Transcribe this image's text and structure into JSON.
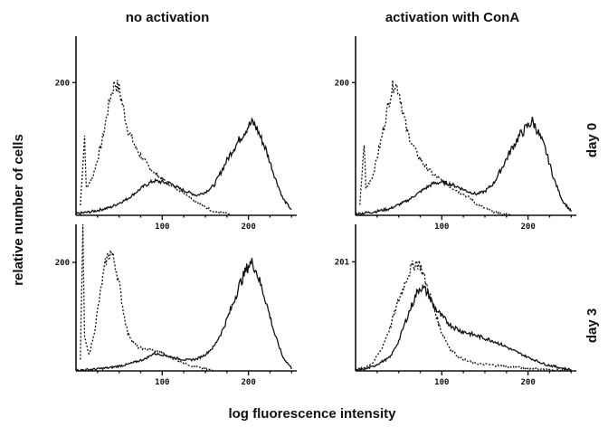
{
  "figure": {
    "column_titles": [
      "no activation",
      "activation  with ConA"
    ],
    "row_labels": [
      "day 0",
      "day 3"
    ],
    "ylabel": "relative number of cells",
    "xlabel": "log fluorescence intensity"
  },
  "chart_data": [
    {
      "type": "line",
      "panel": "no activation / day 0",
      "xlim": [
        0,
        256
      ],
      "ylim": [
        0,
        270
      ],
      "xticks": [
        100,
        200
      ],
      "yticks": [
        200
      ],
      "ytick_labels": [
        "200"
      ],
      "series": [
        {
          "style": "dashed",
          "x": [
            5,
            10,
            12,
            20,
            30,
            40,
            45,
            50,
            55,
            60,
            70,
            80,
            90,
            100,
            110,
            120,
            130,
            140,
            150,
            160,
            170,
            180
          ],
          "y": [
            15,
            120,
            40,
            60,
            110,
            180,
            200,
            190,
            160,
            130,
            100,
            80,
            65,
            55,
            45,
            38,
            30,
            20,
            12,
            6,
            3,
            1
          ]
        },
        {
          "style": "solid",
          "x": [
            0,
            20,
            40,
            60,
            80,
            90,
            100,
            110,
            120,
            130,
            140,
            150,
            160,
            170,
            180,
            190,
            200,
            205,
            210,
            220,
            230,
            240,
            250
          ],
          "y": [
            2,
            6,
            12,
            25,
            45,
            52,
            50,
            48,
            40,
            35,
            30,
            35,
            45,
            70,
            95,
            115,
            135,
            140,
            130,
            100,
            60,
            25,
            8
          ]
        }
      ]
    },
    {
      "type": "line",
      "panel": "activation with ConA / day 0",
      "xlim": [
        0,
        256
      ],
      "ylim": [
        0,
        270
      ],
      "xticks": [
        100,
        200
      ],
      "yticks": [
        200
      ],
      "ytick_labels": [
        "200"
      ],
      "series": [
        {
          "style": "dashed",
          "x": [
            5,
            10,
            12,
            20,
            30,
            40,
            45,
            50,
            55,
            60,
            70,
            80,
            90,
            100,
            110,
            120,
            130,
            140,
            150,
            160,
            170,
            180
          ],
          "y": [
            15,
            110,
            40,
            60,
            115,
            180,
            200,
            190,
            155,
            125,
            95,
            75,
            62,
            52,
            43,
            35,
            28,
            18,
            10,
            5,
            2,
            1
          ]
        },
        {
          "style": "solid",
          "x": [
            0,
            20,
            40,
            60,
            80,
            90,
            100,
            110,
            120,
            130,
            140,
            150,
            160,
            170,
            180,
            190,
            200,
            205,
            210,
            220,
            230,
            240,
            250
          ],
          "y": [
            2,
            5,
            10,
            22,
            40,
            48,
            50,
            47,
            42,
            36,
            32,
            36,
            48,
            72,
            98,
            120,
            135,
            142,
            130,
            100,
            55,
            22,
            6
          ]
        }
      ]
    },
    {
      "type": "line",
      "panel": "no activation / day 3",
      "xlim": [
        0,
        256
      ],
      "ylim": [
        0,
        270
      ],
      "xticks": [
        100,
        200
      ],
      "yticks": [
        200
      ],
      "ytick_labels": [
        "200"
      ],
      "series": [
        {
          "style": "dashed",
          "x": [
            5,
            8,
            10,
            15,
            20,
            25,
            30,
            35,
            40,
            45,
            50,
            55,
            60,
            70,
            80,
            90,
            100,
            110,
            120,
            130,
            140,
            150,
            160
          ],
          "y": [
            20,
            260,
            60,
            30,
            60,
            110,
            160,
            205,
            220,
            200,
            160,
            110,
            70,
            45,
            40,
            38,
            33,
            25,
            18,
            12,
            7,
            3,
            1
          ]
        },
        {
          "style": "solid",
          "x": [
            0,
            20,
            40,
            60,
            80,
            90,
            100,
            110,
            120,
            130,
            140,
            150,
            160,
            170,
            180,
            190,
            200,
            205,
            210,
            220,
            230,
            240,
            250
          ],
          "y": [
            1,
            3,
            6,
            12,
            22,
            32,
            30,
            26,
            22,
            20,
            22,
            30,
            45,
            75,
            115,
            160,
            195,
            200,
            180,
            130,
            70,
            25,
            5
          ]
        }
      ]
    },
    {
      "type": "line",
      "panel": "activation with ConA / day 3",
      "xlim": [
        0,
        256
      ],
      "ylim": [
        0,
        270
      ],
      "xticks": [
        100,
        200
      ],
      "yticks": [
        201
      ],
      "ytick_labels": [
        "201"
      ],
      "series": [
        {
          "style": "dashed",
          "x": [
            0,
            10,
            20,
            30,
            40,
            50,
            60,
            65,
            70,
            75,
            80,
            90,
            100,
            110,
            120,
            130,
            140,
            150,
            170,
            190,
            210,
            230,
            250
          ],
          "y": [
            2,
            6,
            15,
            40,
            80,
            130,
            175,
            190,
            200,
            195,
            170,
            120,
            70,
            40,
            25,
            18,
            14,
            12,
            9,
            6,
            4,
            2,
            1
          ]
        },
        {
          "style": "solid",
          "x": [
            0,
            10,
            20,
            40,
            50,
            60,
            70,
            75,
            80,
            85,
            90,
            100,
            110,
            120,
            130,
            140,
            150,
            160,
            170,
            180,
            200,
            220,
            240,
            250
          ],
          "y": [
            1,
            3,
            8,
            25,
            55,
            100,
            140,
            155,
            150,
            140,
            120,
            100,
            85,
            75,
            70,
            65,
            60,
            55,
            48,
            40,
            25,
            12,
            5,
            2
          ]
        }
      ]
    }
  ]
}
